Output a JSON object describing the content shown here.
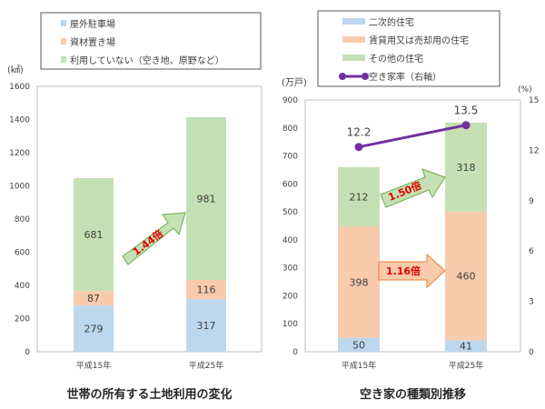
{
  "chart_data": [
    {
      "type": "bar",
      "stacked": true,
      "title": "世帯の所有する土地利用の変化",
      "ylabel": "(㎢)",
      "ylim": [
        0,
        1600
      ],
      "yticks": [
        0,
        200,
        400,
        600,
        800,
        1000,
        1200,
        1400,
        1600
      ],
      "categories": [
        "平成15年",
        "平成25年"
      ],
      "series": [
        {
          "name": "屋外駐車場",
          "values": [
            279,
            317
          ],
          "color": "#bdd7ee"
        },
        {
          "name": "資材置き場",
          "values": [
            87,
            116
          ],
          "color": "#f8cbad"
        },
        {
          "name": "利用していない（空き地、原野など）",
          "values": [
            681,
            981
          ],
          "color": "#c5e0b4"
        }
      ],
      "annotation": "1.44倍",
      "legend": "top"
    },
    {
      "type": "bar",
      "stacked": true,
      "title": "空き家の種類別推移",
      "ylabel": "(万戸)",
      "ylabel_right": "(%)",
      "ylim": [
        0,
        900
      ],
      "ylim_right": [
        0,
        15
      ],
      "yticks": [
        0,
        100,
        200,
        300,
        400,
        500,
        600,
        700,
        800,
        900
      ],
      "yticks_right": [
        0,
        3,
        6,
        9,
        12,
        15
      ],
      "categories": [
        "平成15年",
        "平成25年"
      ],
      "series": [
        {
          "name": "二次的住宅",
          "values": [
            50,
            41
          ],
          "color": "#bdd7ee"
        },
        {
          "name": "賃貸用又は売却用の住宅",
          "values": [
            398,
            460
          ],
          "color": "#f8cbad"
        },
        {
          "name": "その他の住宅",
          "values": [
            212,
            318
          ],
          "color": "#c5e0b4"
        }
      ],
      "line": {
        "name": "空き家率（右軸）",
        "values": [
          12.2,
          13.5
        ],
        "labels": [
          "12.2",
          "13.5"
        ],
        "color": "#7030a0"
      },
      "annotations": [
        "1.50倍",
        "1.16倍"
      ],
      "legend": "top"
    }
  ]
}
